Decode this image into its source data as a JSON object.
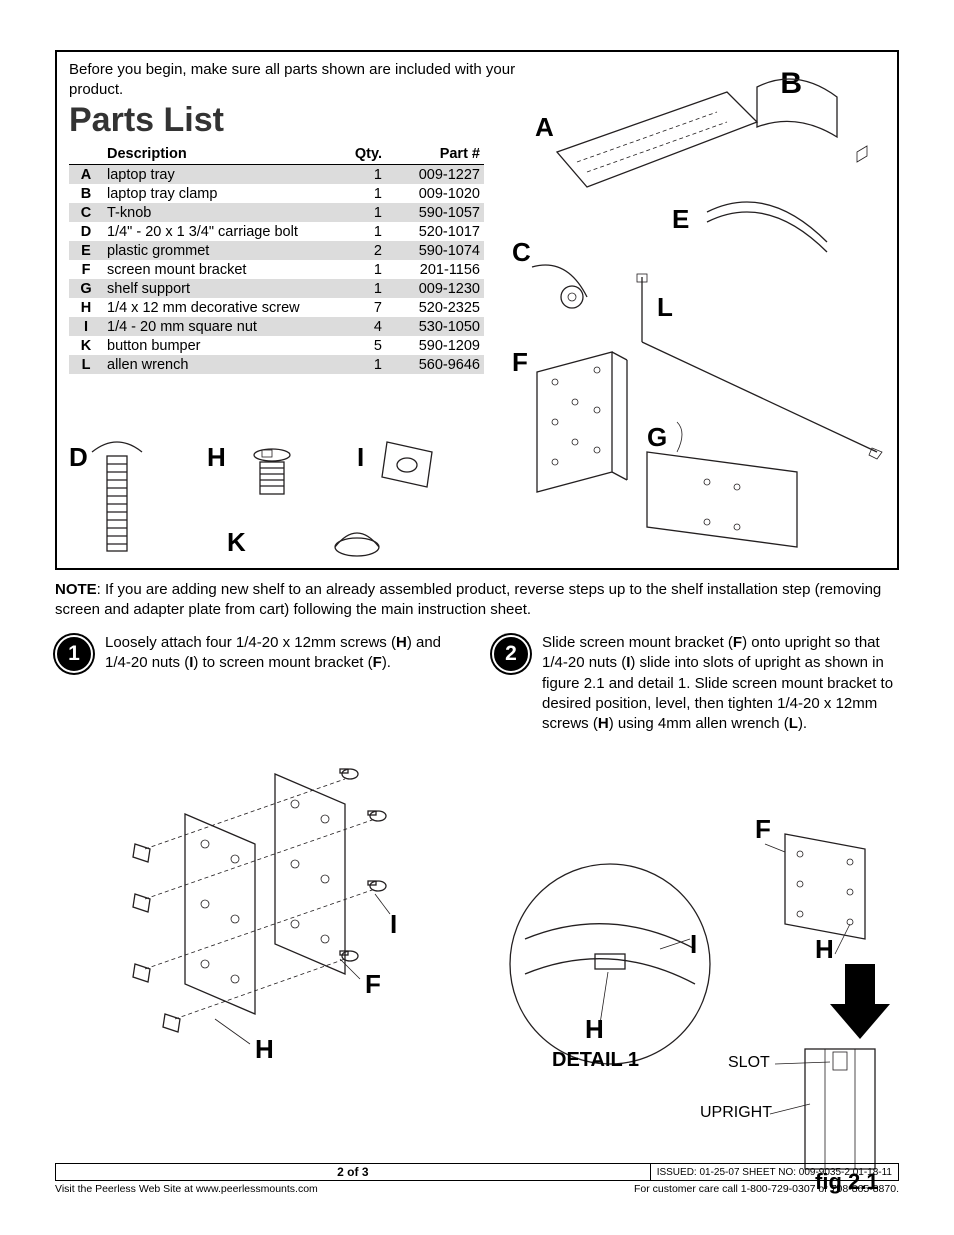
{
  "intro": "Before you begin, make sure all parts shown are included with your product.",
  "parts_title": "Parts List",
  "headers": {
    "desc": "Description",
    "qty": "Qty.",
    "part": "Part  #"
  },
  "parts": [
    {
      "k": "A",
      "d": "laptop tray",
      "q": "1",
      "p": "009-1227"
    },
    {
      "k": "B",
      "d": "laptop tray clamp",
      "q": "1",
      "p": "009-1020"
    },
    {
      "k": "C",
      "d": "T-knob",
      "q": "1",
      "p": "590-1057"
    },
    {
      "k": "D",
      "d": "1/4\" - 20 x 1 3/4\" carriage bolt",
      "q": "1",
      "p": "520-1017"
    },
    {
      "k": "E",
      "d": "plastic grommet",
      "q": "2",
      "p": "590-1074"
    },
    {
      "k": "F",
      "d": "screen mount bracket",
      "q": "1",
      "p": "201-1156"
    },
    {
      "k": "G",
      "d": "shelf support",
      "q": "1",
      "p": "009-1230"
    },
    {
      "k": "H",
      "d": "1/4 x 12 mm decorative screw",
      "q": "7",
      "p": "520-2325"
    },
    {
      "k": "I",
      "d": "1/4 - 20 mm square nut",
      "q": "4",
      "p": "530-1050"
    },
    {
      "k": "K",
      "d": "button bumper",
      "q": "5",
      "p": "590-1209"
    },
    {
      "k": "L",
      "d": "allen wrench",
      "q": "1",
      "p": "560-9646"
    }
  ],
  "note_label": "NOTE",
  "note": ": If you are adding new shelf to an already assembled product, reverse steps up to the shelf installation step (removing screen and adapter plate from cart) following the main instruction sheet.",
  "step1": {
    "n": "1",
    "text_a": "Loosely attach four 1/4-20 x 12mm screws (",
    "b1": "H",
    "text_b": ") and 1/4-20 nuts (",
    "b2": "I",
    "text_c": ") to screen mount bracket (",
    "b3": "F",
    "text_d": ")."
  },
  "step2": {
    "n": "2",
    "t1": "Slide screen mount bracket (",
    "b1": "F",
    "t2": ") onto upright so that 1/4-20 nuts (",
    "b2": "I",
    "t3": ") slide into slots of upright as shown in figure 2.1 and detail 1. Slide screen mount bracket to desired position, level, then tighten 1/4-20 x 12mm screws (",
    "b3": "H",
    "t4": ") using 4mm allen wrench (",
    "b4": "L",
    "t5": ")."
  },
  "labels": {
    "A": "A",
    "B": "B",
    "C": "C",
    "D": "D",
    "E": "E",
    "F": "F",
    "G": "G",
    "H": "H",
    "I": "I",
    "K": "K",
    "L": "L",
    "detail1": "DETAIL 1",
    "slot": "SLOT",
    "upright": "UPRIGHT",
    "fig": "fig 2.1"
  },
  "footer": {
    "page": "2 of 3",
    "issued": "ISSUED: 01-25-07   SHEET NO: 009-9035-2  01-18-11",
    "web": "Visit the Peerless Web Site at www.peerlessmounts.com",
    "care": "For customer care call 1-800-729-0307 or 708-865-8870."
  }
}
